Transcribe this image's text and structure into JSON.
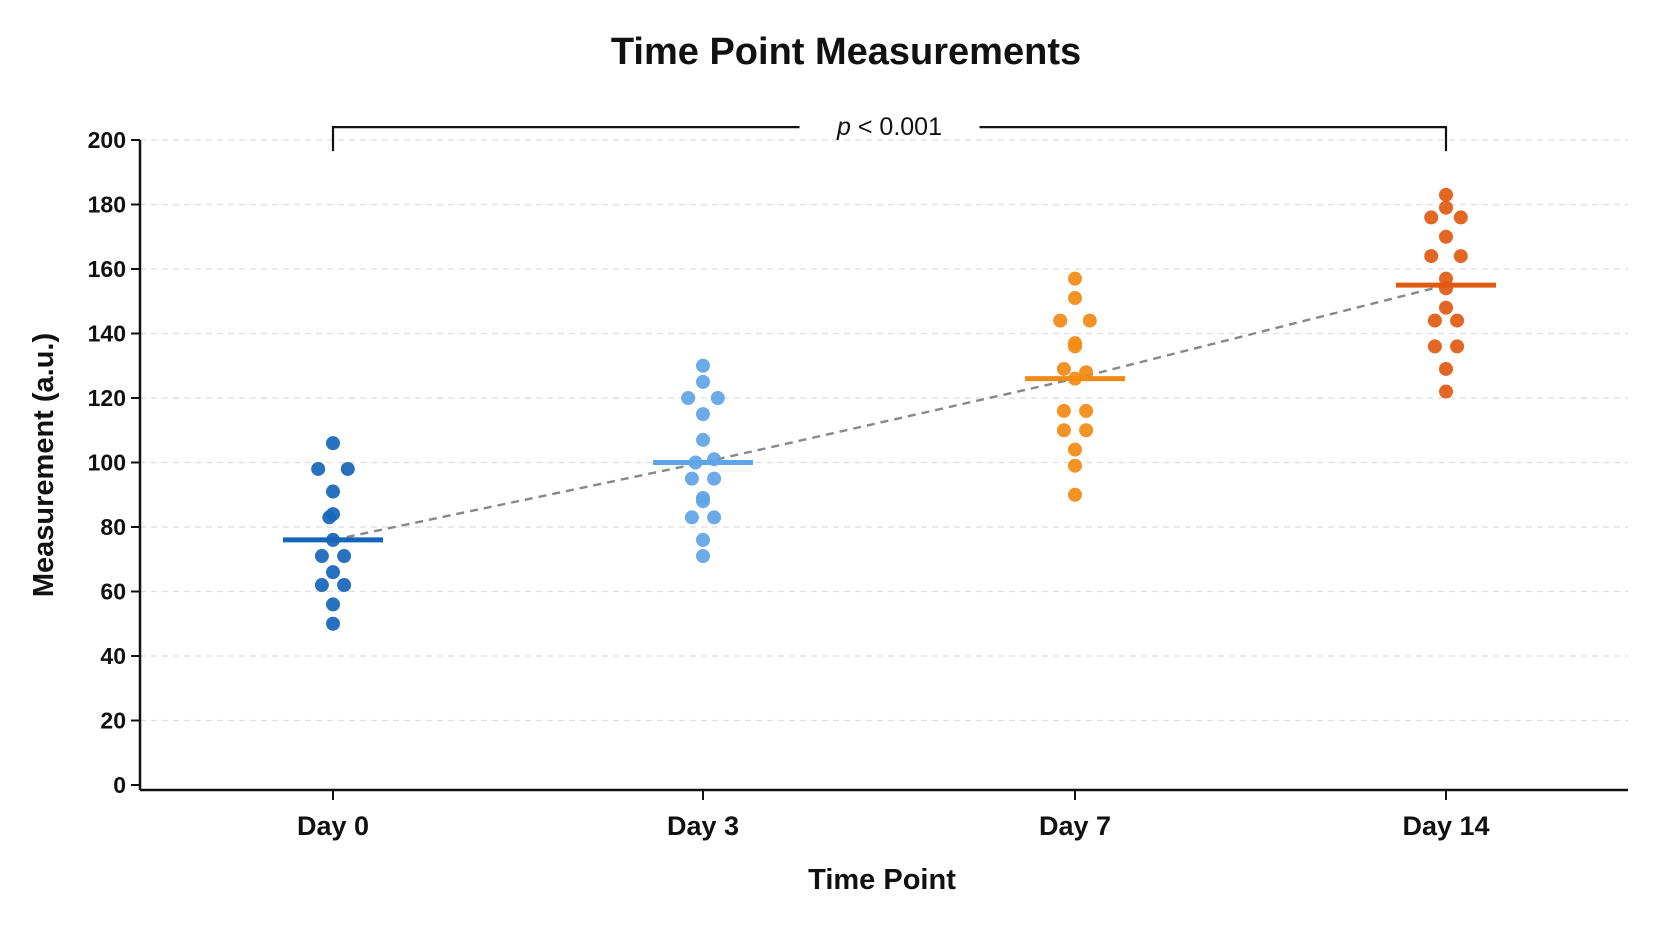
{
  "chart_data": {
    "type": "scatter",
    "title": "Time Point Measurements",
    "xlabel": "Time Point",
    "ylabel": "Measurement (a.u.)",
    "ylim": [
      0,
      200
    ],
    "yticks": [
      0,
      20,
      40,
      60,
      80,
      100,
      120,
      140,
      160,
      180,
      200
    ],
    "grid": "horizontal dashed",
    "categories": [
      "Day 0",
      "Day 3",
      "Day 7",
      "Day 14"
    ],
    "series": [
      {
        "color": "#1565b8",
        "mean": 76,
        "points": [
          [
            0,
            106
          ],
          [
            -0.04,
            98
          ],
          [
            0.04,
            98
          ],
          [
            0,
            91
          ],
          [
            0,
            84
          ],
          [
            -0.01,
            83
          ],
          [
            0,
            76
          ],
          [
            -0.03,
            71
          ],
          [
            0.03,
            71
          ],
          [
            0,
            66
          ],
          [
            -0.03,
            62
          ],
          [
            0.03,
            62
          ],
          [
            0,
            56
          ],
          [
            0,
            50
          ]
        ]
      },
      {
        "color": "#5fa4e6",
        "mean": 100,
        "points": [
          [
            0,
            130
          ],
          [
            0,
            125
          ],
          [
            -0.04,
            120
          ],
          [
            0.04,
            120
          ],
          [
            0,
            115
          ],
          [
            0,
            107
          ],
          [
            -0.02,
            100
          ],
          [
            0.03,
            101
          ],
          [
            -0.03,
            95
          ],
          [
            0.03,
            95
          ],
          [
            0,
            89
          ],
          [
            0,
            88
          ],
          [
            -0.03,
            83
          ],
          [
            0.03,
            83
          ],
          [
            0,
            76
          ],
          [
            0,
            71
          ]
        ]
      },
      {
        "color": "#f38a12",
        "mean": 126,
        "points": [
          [
            0,
            157
          ],
          [
            0,
            151
          ],
          [
            -0.04,
            144
          ],
          [
            0.04,
            144
          ],
          [
            0,
            137
          ],
          [
            0,
            136
          ],
          [
            -0.03,
            129
          ],
          [
            0.03,
            128
          ],
          [
            0,
            126
          ],
          [
            -0.03,
            116
          ],
          [
            0.03,
            116
          ],
          [
            -0.03,
            110
          ],
          [
            0.03,
            110
          ],
          [
            0,
            104
          ],
          [
            0,
            99
          ],
          [
            0,
            90
          ]
        ]
      },
      {
        "color": "#df5a12",
        "mean": 155,
        "points": [
          [
            0,
            183
          ],
          [
            0,
            179
          ],
          [
            -0.04,
            176
          ],
          [
            0.04,
            176
          ],
          [
            0,
            170
          ],
          [
            -0.04,
            164
          ],
          [
            0.04,
            164
          ],
          [
            0,
            157
          ],
          [
            0,
            154
          ],
          [
            0,
            148
          ],
          [
            -0.03,
            144
          ],
          [
            0.03,
            144
          ],
          [
            -0.03,
            136
          ],
          [
            0.03,
            136
          ],
          [
            0,
            129
          ],
          [
            0,
            122
          ]
        ]
      }
    ],
    "trend": {
      "color": "#888888",
      "style": "dashed",
      "values": [
        76,
        100,
        126,
        155
      ]
    },
    "significance": {
      "label_prefix": "p",
      "label_rest": " < 0.001",
      "from_category": 0,
      "to_category": 3,
      "y": 204
    }
  }
}
